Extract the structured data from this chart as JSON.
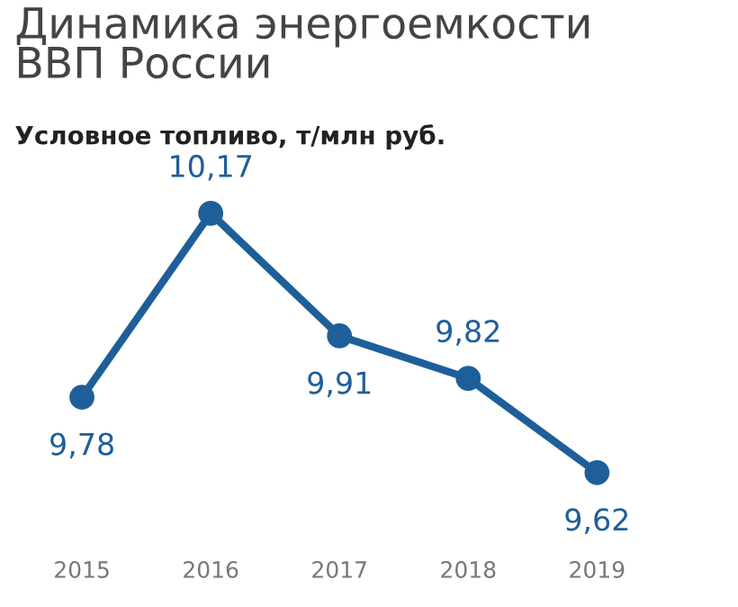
{
  "chart_data": {
    "type": "line",
    "title": "Динамика энергоемкости\nВВП России",
    "subtitle": "Условное топливо, т/млн руб.",
    "categories": [
      "2015",
      "2016",
      "2017",
      "2018",
      "2019"
    ],
    "series": [
      {
        "color": "#1f5f99",
        "values": [
          9.78,
          10.17,
          9.91,
          9.82,
          9.62
        ],
        "value_labels": [
          "9,78",
          "10,17",
          "9,91",
          "9,82",
          "9,62"
        ]
      }
    ],
    "marker": "circle",
    "line_style": "solid",
    "grid": false,
    "legend": false,
    "tick_labels": "x"
  }
}
